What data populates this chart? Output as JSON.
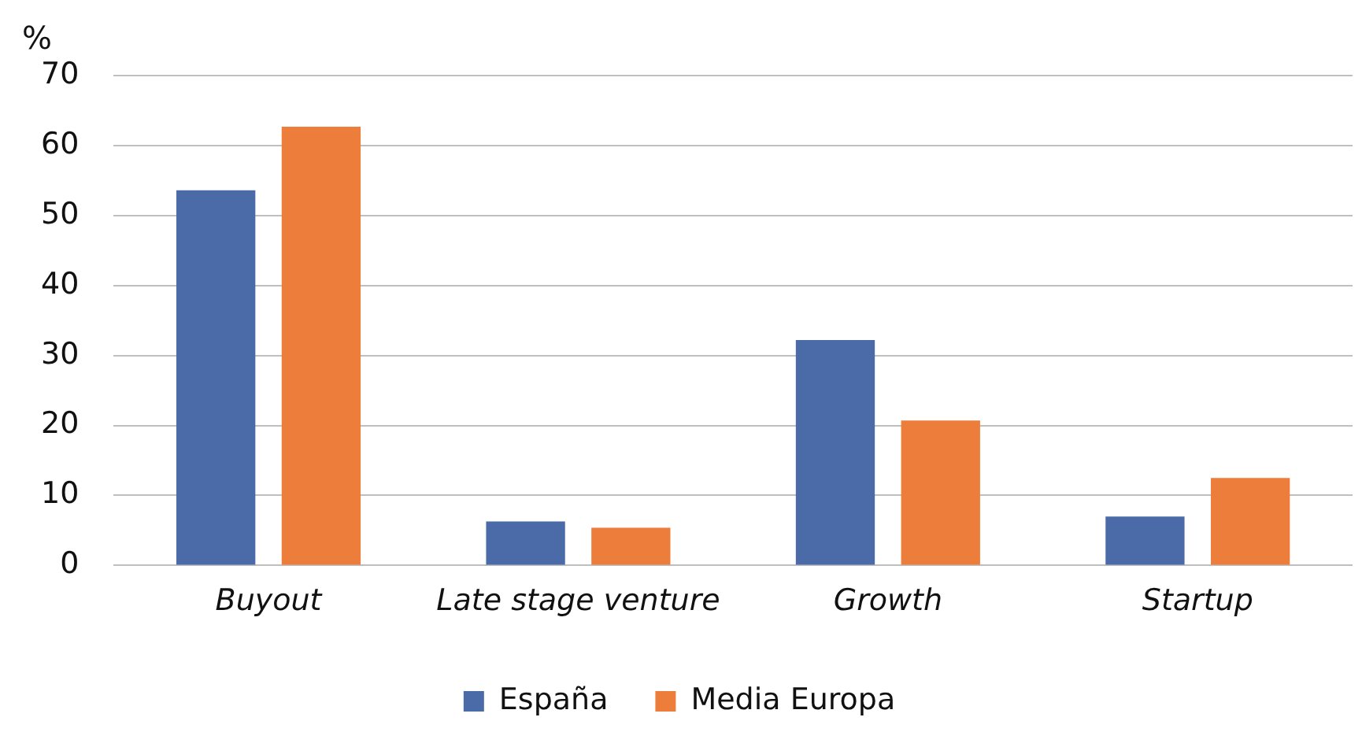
{
  "chart_data": {
    "type": "bar",
    "ylabel": "%",
    "categories": [
      "Buyout",
      "Late stage venture",
      "Growth",
      "Startup"
    ],
    "series": [
      {
        "name": "España",
        "color": "#4a6ba8",
        "values": [
          53.6,
          6.3,
          32.2,
          7.0
        ]
      },
      {
        "name": "Media Europa",
        "color": "#ed7d3b",
        "values": [
          62.7,
          5.4,
          20.7,
          12.5
        ]
      }
    ],
    "ylim": [
      0,
      70
    ],
    "yticks": [
      0,
      10,
      20,
      30,
      40,
      50,
      60,
      70
    ],
    "grid": "y",
    "legend": "bottom"
  }
}
